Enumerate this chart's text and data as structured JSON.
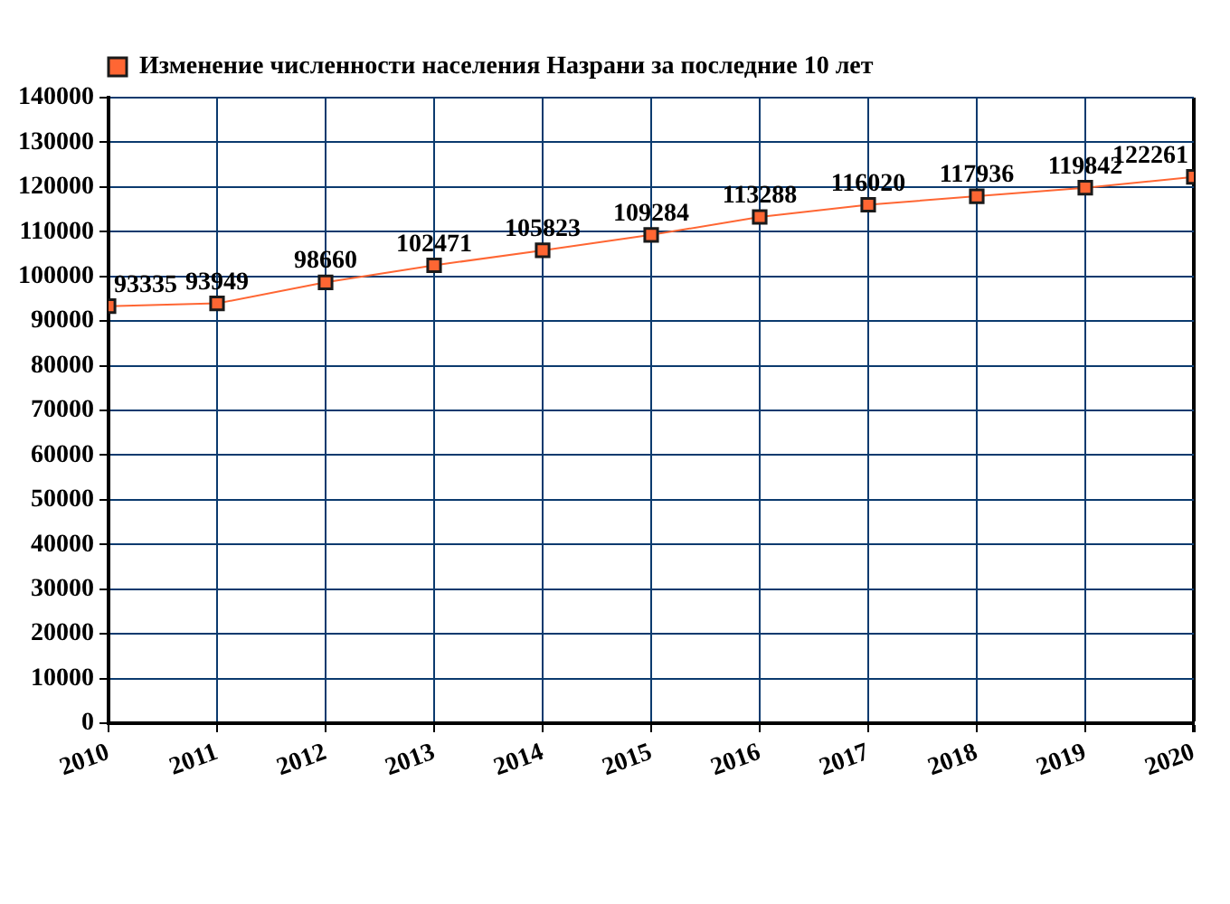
{
  "chart_data": {
    "type": "line",
    "x": [
      2010,
      2011,
      2012,
      2013,
      2014,
      2015,
      2016,
      2017,
      2018,
      2019,
      2020
    ],
    "xlim": [
      2010,
      2020
    ],
    "xticks": [
      2010,
      2011,
      2012,
      2013,
      2014,
      2015,
      2016,
      2017,
      2018,
      2019,
      2020
    ],
    "ylim": [
      0,
      140000
    ],
    "yticks": [
      0,
      10000,
      20000,
      30000,
      40000,
      50000,
      60000,
      70000,
      80000,
      90000,
      100000,
      110000,
      120000,
      130000,
      140000
    ],
    "series": [
      {
        "name": "Изменение численности населения Назрани за последние 10 лет",
        "color": "#ff6633",
        "values": [
          93335,
          93949,
          98660,
          102471,
          105823,
          109284,
          113288,
          116020,
          117936,
          119842,
          122261
        ]
      }
    ],
    "data_labels": true,
    "grid": true,
    "legend": "top left",
    "marker": "square",
    "line_style": "solid"
  }
}
